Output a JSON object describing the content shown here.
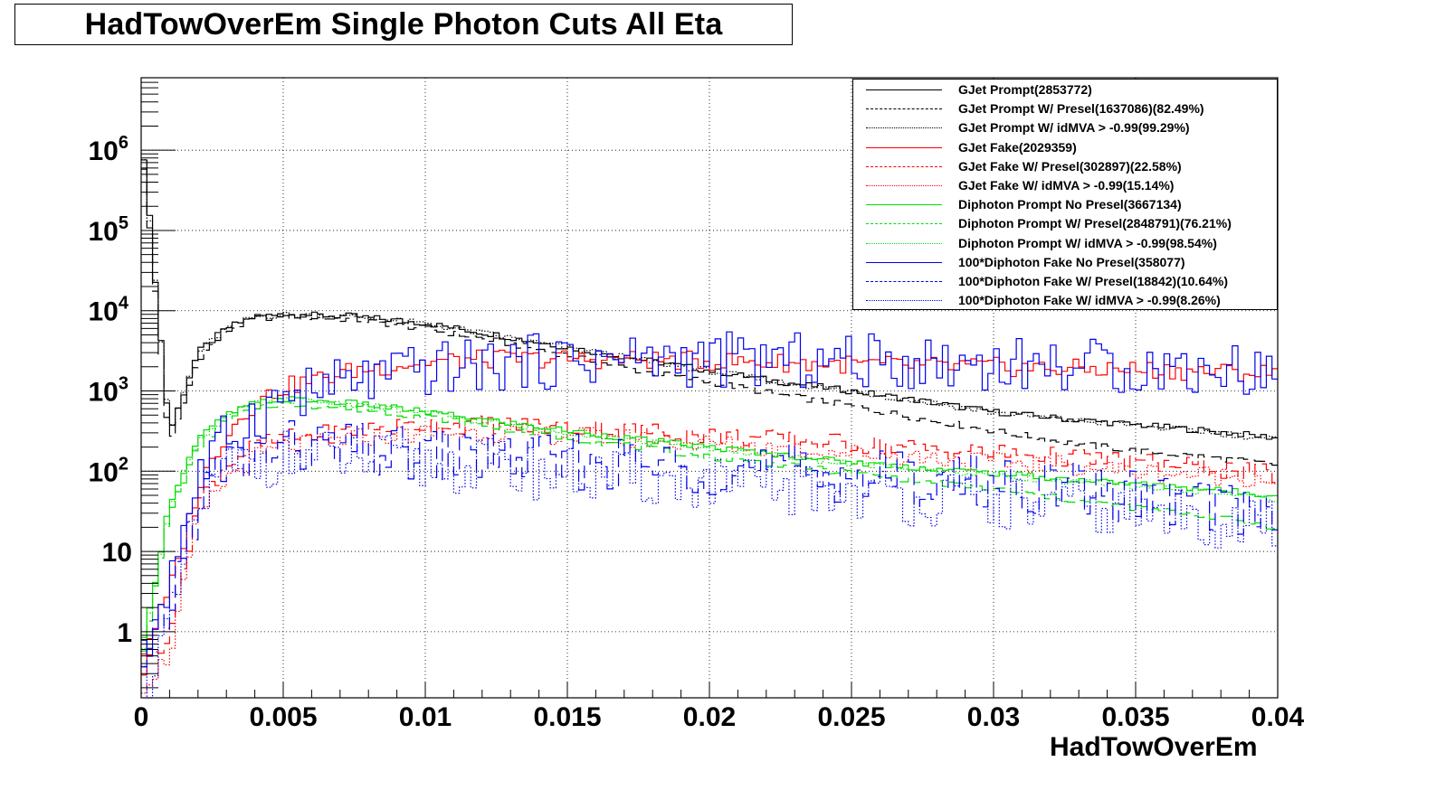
{
  "chart_data": {
    "type": "line",
    "title": "HadTowOverEm Single Photon Cuts All Eta",
    "xlabel": "HadTowOverEm",
    "ylabel": "",
    "xlim": [
      0,
      0.04
    ],
    "ylim": [
      0.15,
      8000000
    ],
    "yscale": "log",
    "grid": true,
    "legend_position": "top-right",
    "x_ticks": [
      "0",
      "0.005",
      "0.01",
      "0.015",
      "0.02",
      "0.025",
      "0.03",
      "0.035",
      "0.04"
    ],
    "y_ticks": [
      {
        "value": 1,
        "base": "1",
        "exp": ""
      },
      {
        "value": 10,
        "base": "10",
        "exp": ""
      },
      {
        "value": 100,
        "base": "10",
        "exp": "2"
      },
      {
        "value": 1000,
        "base": "10",
        "exp": "3"
      },
      {
        "value": 10000,
        "base": "10",
        "exp": "4"
      },
      {
        "value": 100000,
        "base": "10",
        "exp": "5"
      },
      {
        "value": 1000000,
        "base": "10",
        "exp": "6"
      }
    ],
    "x": [
      0.0,
      0.001,
      0.002,
      0.003,
      0.004,
      0.005,
      0.0075,
      0.01,
      0.0125,
      0.015,
      0.0175,
      0.02,
      0.0225,
      0.025,
      0.0275,
      0.03,
      0.0325,
      0.035,
      0.0375,
      0.04
    ],
    "series": [
      {
        "name": "GJet Prompt(2853772)",
        "color": "#000000",
        "dash": "solid",
        "values": [
          2000000,
          300,
          3000,
          6000,
          8500,
          9000,
          8500,
          7000,
          5000,
          3500,
          2500,
          1800,
          1300,
          1000,
          750,
          550,
          450,
          380,
          320,
          260
        ]
      },
      {
        "name": "GJet Prompt W/ Presel(1637086)(82.49%)",
        "color": "#000000",
        "dash": "long",
        "values": [
          1500000,
          200,
          2500,
          5500,
          8000,
          8500,
          7800,
          6000,
          4200,
          2800,
          1800,
          1300,
          900,
          650,
          450,
          320,
          230,
          180,
          150,
          120
        ]
      },
      {
        "name": "GJet Prompt W/ idMVA > -0.99(99.29%)",
        "color": "#000000",
        "dash": "dot",
        "values": [
          2000000,
          300,
          3000,
          6000,
          8400,
          8900,
          8400,
          6900,
          4900,
          3450,
          2450,
          1780,
          1280,
          990,
          740,
          540,
          440,
          370,
          310,
          250
        ]
      },
      {
        "name": "GJet Fake(2029359)",
        "color": "#ff0000",
        "dash": "solid",
        "values": [
          0.5,
          3,
          60,
          300,
          700,
          1100,
          1800,
          2300,
          2500,
          2500,
          2450,
          2350,
          2250,
          2150,
          2050,
          2000,
          1900,
          1850,
          1750,
          1650
        ]
      },
      {
        "name": "GJet Fake W/ Presel(302897)(22.58%)",
        "color": "#ff0000",
        "dash": "long",
        "values": [
          0.3,
          1,
          40,
          120,
          200,
          250,
          320,
          380,
          380,
          350,
          320,
          280,
          250,
          220,
          190,
          170,
          150,
          130,
          110,
          90
        ]
      },
      {
        "name": "GJet Fake W/ idMVA > -0.99(15.14%)",
        "color": "#ff0000",
        "dash": "dot",
        "values": [
          0.2,
          0.5,
          25,
          80,
          150,
          200,
          260,
          300,
          300,
          280,
          250,
          220,
          190,
          170,
          150,
          130,
          120,
          100,
          90,
          80
        ]
      },
      {
        "name": "Diphoton Prompt No Presel(3667134)",
        "color": "#00dd00",
        "dash": "solid",
        "values": [
          0.5,
          40,
          250,
          500,
          700,
          800,
          700,
          550,
          420,
          320,
          250,
          200,
          160,
          130,
          110,
          95,
          80,
          70,
          60,
          50
        ]
      },
      {
        "name": "Diphoton Prompt W/ Presel(2848791)(76.21%)",
        "color": "#00dd00",
        "dash": "long",
        "values": [
          0.4,
          30,
          200,
          420,
          620,
          700,
          600,
          480,
          350,
          260,
          200,
          150,
          120,
          95,
          75,
          60,
          45,
          35,
          28,
          20
        ]
      },
      {
        "name": "Diphoton Prompt W/ idMVA > -0.99(98.54%)",
        "color": "#00dd00",
        "dash": "dot",
        "values": [
          0.4,
          38,
          240,
          480,
          680,
          780,
          680,
          530,
          400,
          310,
          240,
          190,
          155,
          125,
          105,
          90,
          75,
          65,
          55,
          45
        ]
      },
      {
        "name": "100*Diphoton Fake No Presel(358077)",
        "color": "#0000ee",
        "dash": "solid",
        "values": [
          0.3,
          5,
          80,
          250,
          500,
          800,
          1300,
          1800,
          2200,
          2400,
          2500,
          2450,
          2400,
          2350,
          2300,
          2200,
          2100,
          2000,
          1900,
          1800
        ]
      },
      {
        "name": "100*Diphoton Fake W/ Presel(18842)(10.64%)",
        "color": "#0000ee",
        "dash": "long",
        "values": [
          0.2,
          2,
          40,
          120,
          150,
          200,
          180,
          160,
          150,
          130,
          120,
          110,
          100,
          90,
          80,
          70,
          60,
          50,
          40,
          30
        ]
      },
      {
        "name": "100*Diphoton Fake W/ idMVA > -0.99(8.26%)",
        "color": "#0000ee",
        "dash": "dot",
        "values": [
          0.2,
          1,
          30,
          100,
          130,
          150,
          140,
          120,
          110,
          90,
          80,
          70,
          60,
          55,
          45,
          40,
          35,
          30,
          25,
          20
        ]
      }
    ]
  }
}
